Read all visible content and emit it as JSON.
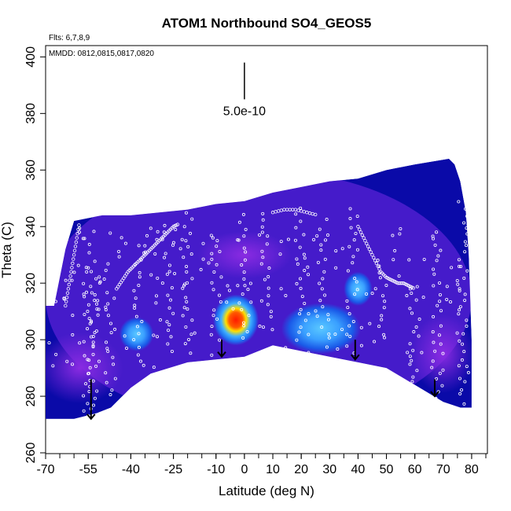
{
  "chart_data": {
    "type": "heatmap",
    "title": "ATOM1 Northbound SO4_GEOS5",
    "xlabel": "Latitude (deg N)",
    "ylabel": "Theta (C)",
    "xlim": [
      -70,
      85
    ],
    "ylim": [
      260,
      404
    ],
    "x_ticks": [
      -70,
      -55,
      -40,
      -25,
      -10,
      0,
      10,
      20,
      30,
      40,
      50,
      60,
      70,
      80
    ],
    "x_tick_labels": [
      "-70",
      "-55",
      "-40",
      "-25",
      "-10",
      "0",
      "10",
      "20",
      "30",
      "40",
      "50",
      "60",
      "70",
      "80"
    ],
    "y_ticks": [
      260,
      280,
      300,
      320,
      340,
      360,
      380,
      400
    ],
    "y_tick_labels": [
      "260",
      "280",
      "300",
      "320",
      "340",
      "360",
      "380",
      "400"
    ],
    "annotations": {
      "flights": "Flts: 6,7,8,9",
      "dates": "MMDD: 0812,0815,0817,0820",
      "scale": "5.0e-10"
    },
    "colors": {
      "background_field": "#0a0aa8",
      "mid_field": "#5a22d6",
      "low_purple": "#8a2be2",
      "light_blue": "#3fb0ff",
      "hot_core": "#ff2a00",
      "yellow": "#ffe000",
      "points": "#ffffff",
      "arrows": "#000000"
    },
    "domain_outline": [
      [
        -70,
        272
      ],
      [
        -60,
        272
      ],
      [
        -52,
        274
      ],
      [
        -47,
        276
      ],
      [
        -40,
        283
      ],
      [
        -33,
        288
      ],
      [
        -20,
        292
      ],
      [
        -10,
        293
      ],
      [
        0,
        294
      ],
      [
        10,
        298
      ],
      [
        20,
        296
      ],
      [
        30,
        294
      ],
      [
        40,
        292
      ],
      [
        50,
        290
      ],
      [
        60,
        284
      ],
      [
        70,
        278
      ],
      [
        76,
        276
      ],
      [
        80,
        276
      ],
      [
        80,
        300
      ],
      [
        79,
        330
      ],
      [
        78,
        345
      ],
      [
        76,
        356
      ],
      [
        74,
        362
      ],
      [
        72,
        364
      ],
      [
        60,
        362
      ],
      [
        50,
        360
      ],
      [
        40,
        357
      ],
      [
        30,
        356
      ],
      [
        20,
        354
      ],
      [
        10,
        352
      ],
      [
        0,
        349
      ],
      [
        -10,
        348
      ],
      [
        -20,
        346
      ],
      [
        -30,
        345
      ],
      [
        -40,
        344
      ],
      [
        -50,
        344
      ],
      [
        -55,
        343
      ],
      [
        -60,
        342
      ],
      [
        -63,
        332
      ],
      [
        -65,
        322
      ],
      [
        -67,
        312
      ],
      [
        -70,
        312
      ]
    ],
    "hotspots": [
      {
        "x": -3,
        "y": 307,
        "peak": "red",
        "r_lat": 8,
        "r_theta": 9
      },
      {
        "x": 27,
        "y": 304,
        "peak": "light_blue",
        "r_lat": 14,
        "r_theta": 9
      },
      {
        "x": -38,
        "y": 302,
        "peak": "light_blue",
        "r_lat": 6,
        "r_theta": 6
      },
      {
        "x": 40,
        "y": 318,
        "peak": "light_blue",
        "r_lat": 5,
        "r_theta": 6
      }
    ],
    "profiles": [
      {
        "lat": -55,
        "theta_min": 273,
        "theta_max": 320
      },
      {
        "lat": -53,
        "theta_min": 275,
        "theta_max": 330
      },
      {
        "lat": -47,
        "theta_min": 280,
        "theta_max": 318
      },
      {
        "lat": -37,
        "theta_min": 293,
        "theta_max": 333
      },
      {
        "lat": -27,
        "theta_min": 296,
        "theta_max": 340
      },
      {
        "lat": -20,
        "theta_min": 298,
        "theta_max": 345
      },
      {
        "lat": -10,
        "theta_min": 300,
        "theta_max": 338
      },
      {
        "lat": 0,
        "theta_min": 300,
        "theta_max": 345
      },
      {
        "lat": 8,
        "theta_min": 303,
        "theta_max": 346
      },
      {
        "lat": 20,
        "theta_min": 300,
        "theta_max": 347
      },
      {
        "lat": 28,
        "theta_min": 298,
        "theta_max": 344
      },
      {
        "lat": 38,
        "theta_min": 296,
        "theta_max": 348
      },
      {
        "lat": 48,
        "theta_min": 300,
        "theta_max": 330
      },
      {
        "lat": 60,
        "theta_min": 283,
        "theta_max": 320
      },
      {
        "lat": 68,
        "theta_min": 279,
        "theta_max": 340
      },
      {
        "lat": 77,
        "theta_min": 278,
        "theta_max": 365
      }
    ],
    "points_scatter_lat": [
      -68,
      -66,
      -63,
      -60,
      -58,
      -56,
      -54,
      -52,
      -50,
      -48,
      -44,
      -42,
      -35,
      -32,
      -30,
      -24,
      -22,
      -18,
      -15,
      -12,
      -6,
      -3,
      3,
      6,
      12,
      15,
      22,
      25,
      32,
      35,
      42,
      45,
      52,
      55,
      58,
      63,
      66,
      72,
      75
    ],
    "tracks": [
      {
        "points": [
          [
            -45,
            318
          ],
          [
            -43,
            321
          ],
          [
            -41,
            324
          ],
          [
            -39,
            326
          ],
          [
            -37,
            328
          ],
          [
            -35,
            330
          ],
          [
            -33,
            332
          ],
          [
            -31,
            334
          ],
          [
            -29,
            336
          ],
          [
            -27,
            338
          ],
          [
            -25,
            340
          ],
          [
            -23,
            341
          ]
        ]
      },
      {
        "points": [
          [
            40,
            340
          ],
          [
            42,
            336
          ],
          [
            44,
            332
          ],
          [
            46,
            328
          ],
          [
            48,
            324
          ],
          [
            50,
            322
          ],
          [
            52,
            321
          ],
          [
            54,
            320
          ],
          [
            56,
            320
          ],
          [
            58,
            319
          ],
          [
            60,
            318
          ]
        ]
      },
      {
        "points": [
          [
            10,
            345
          ],
          [
            14,
            346
          ],
          [
            18,
            346
          ],
          [
            22,
            345
          ],
          [
            26,
            344
          ]
        ]
      },
      {
        "points": [
          [
            -63,
            312
          ],
          [
            -62,
            318
          ],
          [
            -61,
            324
          ],
          [
            -60,
            330
          ],
          [
            -59,
            336
          ],
          [
            -58,
            342
          ]
        ]
      }
    ],
    "arrows": [
      {
        "lat": -54,
        "theta_top": 286,
        "theta_tip": 272
      },
      {
        "lat": -8,
        "theta_top": 300,
        "theta_tip": 294
      },
      {
        "lat": 39,
        "theta_top": 300,
        "theta_tip": 293
      },
      {
        "lat": 67,
        "theta_top": 286,
        "theta_tip": 280
      }
    ],
    "scale_bar": {
      "lat": 0,
      "theta_top": 398,
      "theta_bottom": 385
    },
    "legend": "none",
    "grid": false
  }
}
